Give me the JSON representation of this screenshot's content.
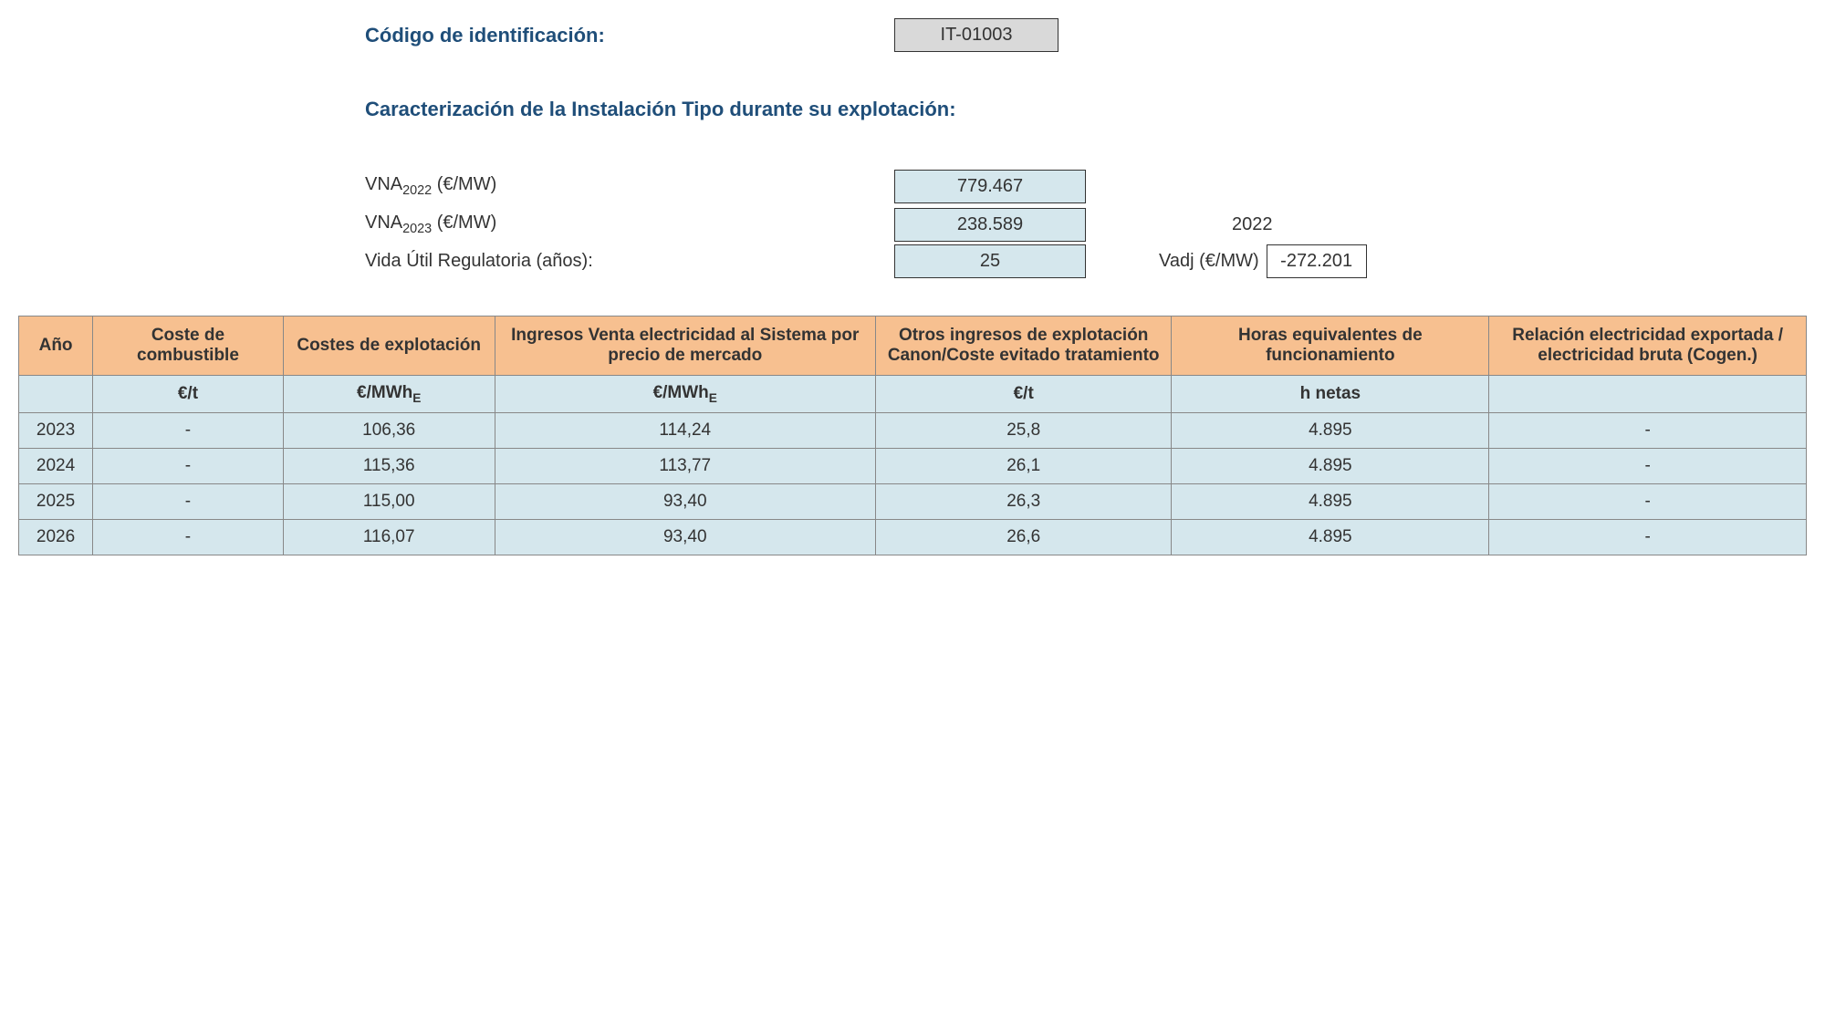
{
  "header": {
    "id_label": "Código de identificación:",
    "id_value": "IT-01003",
    "section_title": "Caracterización de la Instalación Tipo durante su explotación:"
  },
  "params": {
    "vna2022_label_pre": "VNA",
    "vna2022_label_sub": "2022",
    "vna2022_label_post": " (€/MW)",
    "vna2022_value": "779.467",
    "vna2023_label_pre": "VNA",
    "vna2023_label_sub": "2023",
    "vna2023_label_post": " (€/MW)",
    "vna2023_value": "238.589",
    "year_right": "2022",
    "vida_label": "Vida Útil Regulatoria (años):",
    "vida_value": "25",
    "vadj_label": "Vadj (€/MW)",
    "vadj_value": "-272.201"
  },
  "table": {
    "headers": {
      "ano": "Año",
      "c1": "Coste de combustible",
      "c2": "Costes de explotación",
      "c3": "Ingresos Venta electricidad al Sistema por precio de mercado",
      "c4": "Otros ingresos de explotación Canon/Coste evitado tratamiento",
      "c5": "Horas equivalentes de funcionamiento",
      "c6": "Relación electricidad exportada / electricidad bruta (Cogen.)"
    },
    "units": {
      "ano": "",
      "c1": "€/t",
      "c2_pre": "€/MWh",
      "c2_sub": "E",
      "c3_pre": "€/MWh",
      "c3_sub": "E",
      "c4": "€/t",
      "c5": "h netas",
      "c6": ""
    },
    "rows": [
      {
        "ano": "2023",
        "c1": "-",
        "c2": "106,36",
        "c3": "114,24",
        "c4": "25,8",
        "c5": "4.895",
        "c6": "-"
      },
      {
        "ano": "2024",
        "c1": "-",
        "c2": "115,36",
        "c3": "113,77",
        "c4": "26,1",
        "c5": "4.895",
        "c6": "-"
      },
      {
        "ano": "2025",
        "c1": "-",
        "c2": "115,00",
        "c3": "93,40",
        "c4": "26,3",
        "c5": "4.895",
        "c6": "-"
      },
      {
        "ano": "2026",
        "c1": "-",
        "c2": "116,07",
        "c3": "93,40",
        "c4": "26,6",
        "c5": "4.895",
        "c6": "-"
      }
    ]
  },
  "colors": {
    "header_bg": "#f7c090",
    "cell_bg": "#d5e7ed",
    "id_box_bg": "#d9d9d9",
    "title_color": "#1f4e79",
    "border": "#888888"
  }
}
